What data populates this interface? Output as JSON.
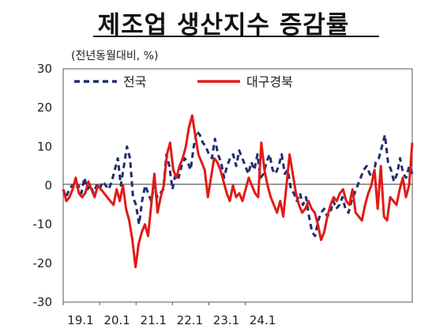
{
  "title": "제조업 생산지수 증감률",
  "unit_label": "(전년동월대비, %)",
  "chart_data": {
    "type": "line",
    "y_ticks": [
      "30",
      "20",
      "10",
      "0",
      "-10",
      "-20",
      "-30"
    ],
    "ylim": [
      -30,
      30
    ],
    "x_ticks": [
      "19.1",
      "20.1",
      "21.1",
      "22.1",
      "23.1",
      "24.1"
    ],
    "grid": false,
    "legend_position": "top-left",
    "series": [
      {
        "name": "전국",
        "color": "#1f2d6e",
        "style": "dashed",
        "values": [
          -1,
          -3,
          -1,
          0,
          -1,
          0,
          -2,
          2,
          -1,
          0,
          -2,
          0,
          -1,
          1,
          0,
          -1,
          1,
          4,
          7,
          0,
          5,
          10,
          7,
          -3,
          -5,
          -10,
          -4,
          0,
          -2,
          -4,
          0,
          -3,
          -2,
          -1,
          8,
          5,
          -1,
          3,
          2,
          5,
          7,
          6,
          4,
          10,
          14,
          13,
          11,
          10,
          8,
          7,
          12,
          8,
          6,
          2,
          5,
          7,
          8,
          5,
          9,
          7,
          5,
          3,
          6,
          4,
          8,
          2,
          3,
          6,
          8,
          4,
          3,
          5,
          8,
          3,
          4,
          -1,
          -2,
          -4,
          -2,
          -5,
          -3,
          -8,
          -12,
          -13,
          -9,
          -7,
          -6,
          -8,
          -7,
          -4,
          -6,
          -5,
          -3,
          -6,
          -7,
          -4,
          -2,
          0,
          2,
          4,
          5,
          3,
          2,
          6,
          7,
          10,
          13,
          6,
          4,
          1,
          3,
          7,
          3,
          2,
          5,
          3
        ]
      },
      {
        "name": "대구경북",
        "color": "#e11b17",
        "style": "solid",
        "values": [
          -1,
          -4,
          -3,
          -1,
          2,
          -2,
          -3,
          -2,
          1,
          -1,
          -3,
          0,
          -1,
          -2,
          -3,
          -4,
          -5,
          -1,
          -4,
          0,
          -6,
          -9,
          -14,
          -21,
          -15,
          -12,
          -10,
          -13,
          -5,
          3,
          -7,
          -3,
          0,
          8,
          11,
          4,
          2,
          5,
          7,
          10,
          15,
          18,
          13,
          8,
          6,
          4,
          -3,
          2,
          7,
          6,
          4,
          1,
          -2,
          -4,
          0,
          -3,
          -2,
          -4,
          -1,
          2,
          0,
          -2,
          -3,
          11,
          4,
          0,
          -3,
          -5,
          -7,
          -4,
          -8,
          0,
          8,
          3,
          -2,
          -5,
          -7,
          -6,
          -4,
          -6,
          -7,
          -10,
          -14,
          -12,
          -8,
          -5,
          -3,
          -4,
          -2,
          -1,
          -4,
          -5,
          -1,
          -7,
          -8,
          -9,
          -5,
          -2,
          0,
          4,
          -6,
          5,
          -8,
          -9,
          -3,
          -4,
          -5,
          -1,
          2,
          -3,
          0,
          11
        ]
      }
    ]
  }
}
